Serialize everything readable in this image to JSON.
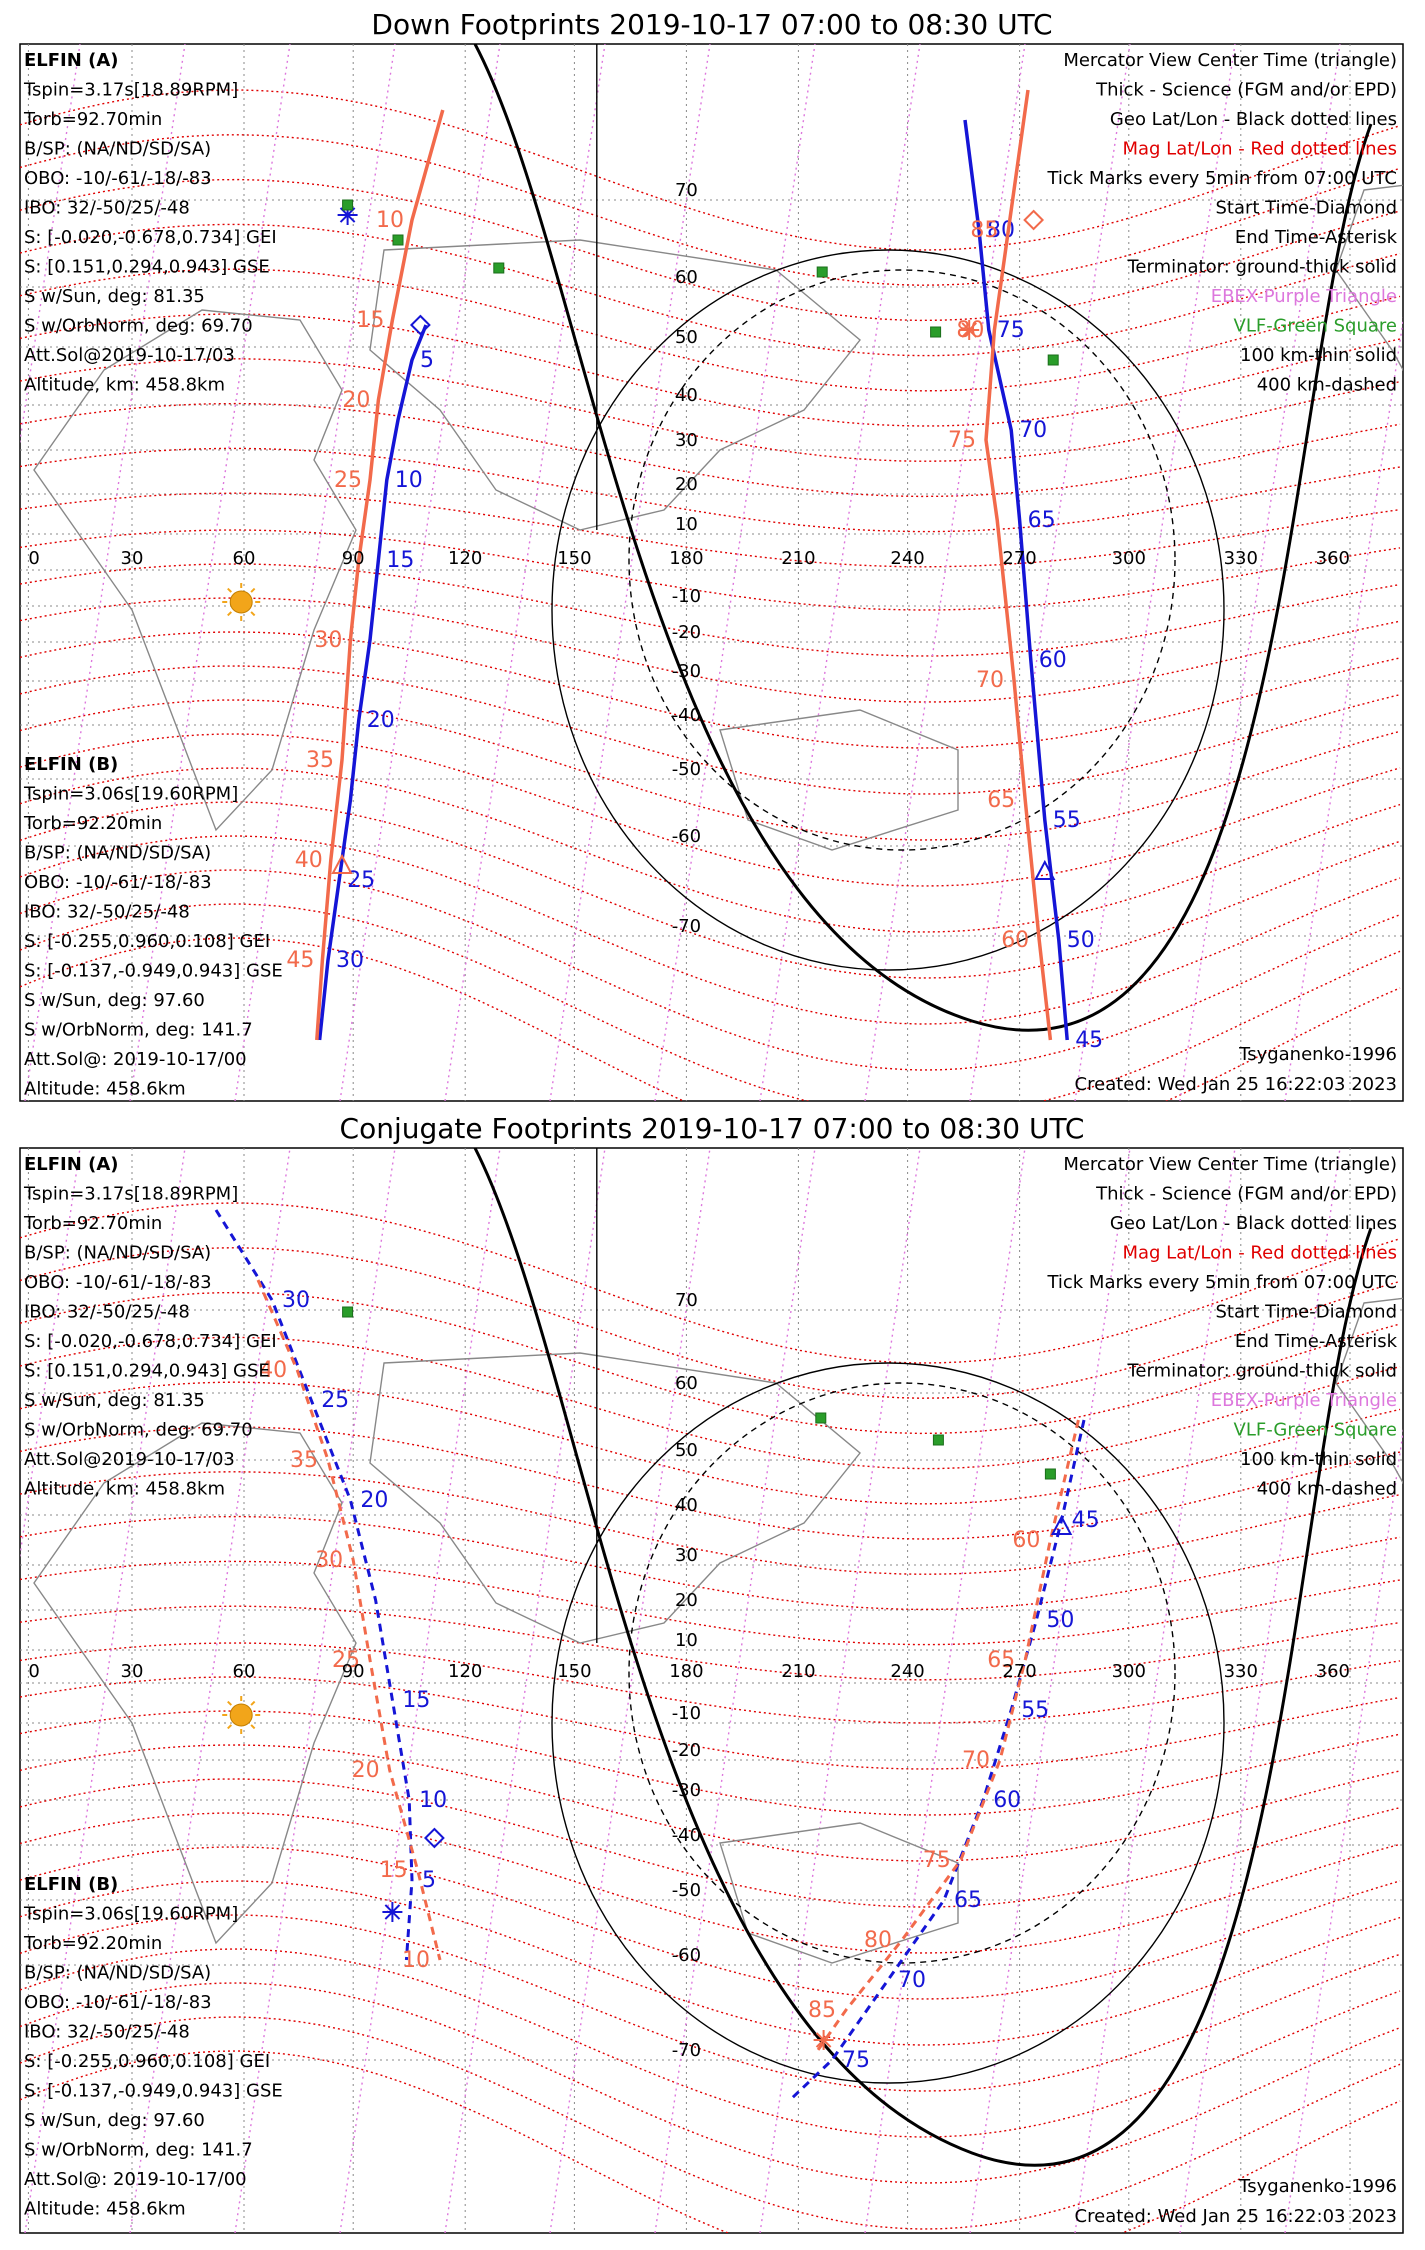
{
  "colors": {
    "elfin_a": "#1515d6",
    "elfin_b": "#f26a4b",
    "mag": "#e00000",
    "ebex": "#dd77dd",
    "vlf": "#2a9d2a",
    "geo": "#000000",
    "sun": "#f2a51a"
  },
  "panels": [
    {
      "id": "down",
      "title": "Down Footprints 2019-10-17 07:00 to 08:30 UTC",
      "elfin_a": {
        "name": "ELFIN (A)",
        "lines": [
          "Tspin=3.17s[18.89RPM]",
          "Torb=92.70min",
          "B/SP: (NA/ND/SD/SA)",
          "OBO: -10/-61/-18/-83",
          "IBO: 32/-50/25/-48",
          "S: [-0.020,-0.678,0.734] GEI",
          "S: [0.151,0.294,0.943] GSE",
          "S w/Sun, deg: 81.35",
          "S w/OrbNorm, deg: 69.70",
          "Att.Sol@2019-10-17/03",
          "Altitude, km: 458.8km"
        ]
      },
      "elfin_b": {
        "name": "ELFIN (B)",
        "lines": [
          "Tspin=3.06s[19.60RPM]",
          "Torb=92.20min",
          "B/SP: (NA/ND/SD/SA)",
          "OBO: -10/-61/-18/-83",
          "IBO: 32/-50/25/-48",
          "S: [-0.255,0.960,0.108] GEI",
          "S: [-0.137,-0.949,0.943] GSE",
          "S w/Sun, deg: 97.60",
          "S w/OrbNorm, deg: 141.7",
          "Att.Sol@: 2019-10-17/00",
          "Altitude: 458.6km"
        ]
      },
      "legend": [
        "Mercator View Center Time (triangle)",
        "Thick - Science (FGM and/or EPD)",
        "Geo Lat/Lon - Black dotted lines",
        "Mag Lat/Lon - Red dotted lines",
        "Tick Marks every 5min from 07:00 UTC",
        "Start Time-Diamond",
        "End Time-Asterisk",
        "Terminator: ground-thick solid",
        "EBEX-Purple Triangle",
        "VLF-Green Square",
        "100 km-thin solid",
        "400 km-dashed"
      ],
      "model": "Tsyganenko-1996",
      "created": "Created: Wed Jan 25 16:22:03 2023"
    },
    {
      "id": "conj",
      "title": "Conjugate Footprints 2019-10-17 07:00 to 08:30 UTC",
      "elfin_a": {
        "name": "ELFIN (A)",
        "lines": [
          "Tspin=3.17s[18.89RPM]",
          "Torb=92.70min",
          "B/SP: (NA/ND/SD/SA)",
          "OBO: -10/-61/-18/-83",
          "IBO: 32/-50/25/-48",
          "S: [-0.020,-0.678,0.734] GEI",
          "S: [0.151,0.294,0.943] GSE",
          "S w/Sun, deg: 81.35",
          "S w/OrbNorm, deg: 69.70",
          "Att.Sol@2019-10-17/03",
          "Altitude, km: 458.8km"
        ]
      },
      "elfin_b": {
        "name": "ELFIN (B)",
        "lines": [
          "Tspin=3.06s[19.60RPM]",
          "Torb=92.20min",
          "B/SP: (NA/ND/SD/SA)",
          "OBO: -10/-61/-18/-83",
          "IBO: 32/-50/25/-48",
          "S: [-0.255,0.960,0.108] GEI",
          "S: [-0.137,-0.949,0.943] GSE",
          "S w/Sun, deg: 97.60",
          "S w/OrbNorm, deg: 141.7",
          "Att.Sol@: 2019-10-17/00",
          "Altitude: 458.6km"
        ]
      },
      "legend": [
        "Mercator View Center Time (triangle)",
        "Thick - Science (FGM and/or EPD)",
        "Geo Lat/Lon - Black dotted lines",
        "Mag Lat/Lon - Red dotted lines",
        "Tick Marks every 5min from 07:00 UTC",
        "Start Time-Diamond",
        "End Time-Asterisk",
        "Terminator: ground-thick solid",
        "EBEX-Purple Triangle",
        "VLF-Green Square",
        "100 km-thin solid",
        "400 km-dashed"
      ],
      "model": "Tsyganenko-1996",
      "created": "Created: Wed Jan 25 16:22:03 2023"
    }
  ],
  "map": {
    "lon_ticks": [
      "0",
      "30",
      "60",
      "90",
      "120",
      "150",
      "180",
      "210",
      "240",
      "270",
      "300",
      "330",
      "360"
    ],
    "lat_ticks": [
      "70",
      "60",
      "50",
      "40",
      "30",
      "20",
      "10",
      "-10",
      "-20",
      "-30",
      "-40",
      "-50",
      "-60",
      "-70"
    ]
  },
  "tracks": {
    "down": {
      "a_west": {
        "labels": [
          "5",
          "10",
          "15",
          "20",
          "25",
          "30"
        ]
      },
      "b_west": {
        "labels": [
          "10",
          "15",
          "20",
          "25",
          "30",
          "35",
          "40",
          "45"
        ]
      },
      "a_east": {
        "labels": [
          "80",
          "75",
          "70",
          "65",
          "60",
          "55",
          "50",
          "45"
        ]
      },
      "b_east": {
        "labels": [
          "85",
          "80",
          "75",
          "70",
          "65",
          "60"
        ]
      }
    },
    "conj": {
      "a_west": {
        "labels": [
          "30",
          "25",
          "20",
          "15",
          "10",
          "5"
        ]
      },
      "b_west": {
        "labels": [
          "40",
          "35",
          "30",
          "25",
          "20",
          "15",
          "10"
        ]
      },
      "a_east": {
        "labels": [
          "45",
          "50",
          "55",
          "60",
          "65",
          "70",
          "75"
        ]
      },
      "b_east": {
        "labels": [
          "60",
          "65",
          "70",
          "75",
          "80",
          "85"
        ]
      }
    }
  }
}
